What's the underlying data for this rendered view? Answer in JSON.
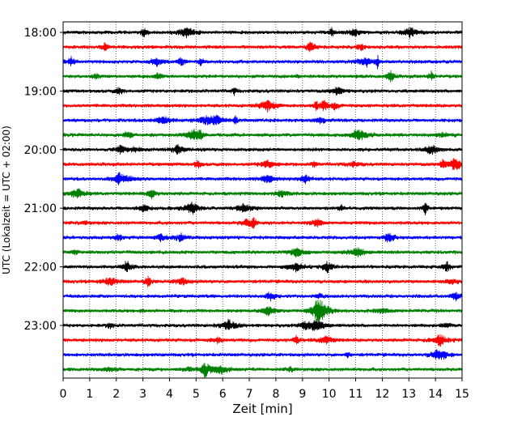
{
  "chart_data": {
    "type": "line",
    "title": "",
    "xlabel": "Zeit  [min]",
    "ylabel": "UTC (Lokalzeit = UTC + 02:00)",
    "xlim": [
      0,
      15
    ],
    "x_ticks": [
      0,
      1,
      2,
      3,
      4,
      5,
      6,
      7,
      8,
      9,
      10,
      11,
      12,
      13,
      14,
      15
    ],
    "y_tick_labels": [
      "18:00",
      "19:00",
      "20:00",
      "21:00",
      "22:00",
      "23:00"
    ],
    "trace_interval_minutes": 15,
    "grid": "vertical dotted",
    "legend": "none",
    "trace_colors": [
      "#000000",
      "#ff0000",
      "#0000ff",
      "#008000"
    ],
    "traces": [
      {
        "start": "18:00",
        "color": "#000000"
      },
      {
        "start": "18:15",
        "color": "#ff0000"
      },
      {
        "start": "18:30",
        "color": "#0000ff"
      },
      {
        "start": "18:45",
        "color": "#008000"
      },
      {
        "start": "19:00",
        "color": "#000000"
      },
      {
        "start": "19:15",
        "color": "#ff0000"
      },
      {
        "start": "19:30",
        "color": "#0000ff"
      },
      {
        "start": "19:45",
        "color": "#008000"
      },
      {
        "start": "20:00",
        "color": "#000000"
      },
      {
        "start": "20:15",
        "color": "#ff0000"
      },
      {
        "start": "20:30",
        "color": "#0000ff"
      },
      {
        "start": "20:45",
        "color": "#008000"
      },
      {
        "start": "21:00",
        "color": "#000000"
      },
      {
        "start": "21:15",
        "color": "#ff0000"
      },
      {
        "start": "21:30",
        "color": "#0000ff"
      },
      {
        "start": "21:45",
        "color": "#008000"
      },
      {
        "start": "22:00",
        "color": "#000000"
      },
      {
        "start": "22:15",
        "color": "#ff0000"
      },
      {
        "start": "22:30",
        "color": "#0000ff"
      },
      {
        "start": "22:45",
        "color": "#008000"
      },
      {
        "start": "23:00",
        "color": "#000000"
      },
      {
        "start": "23:15",
        "color": "#ff0000"
      },
      {
        "start": "23:30",
        "color": "#0000ff"
      },
      {
        "start": "23:45",
        "color": "#008000"
      }
    ]
  }
}
